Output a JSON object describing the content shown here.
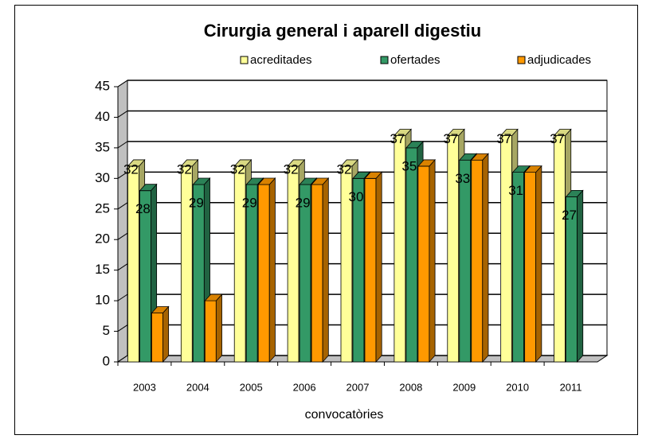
{
  "chart_data": {
    "type": "bar3d",
    "title": "Cirurgia general i aparell digestiu",
    "categories": [
      "2003",
      "2004",
      "2005",
      "2006",
      "2007",
      "2008",
      "2009",
      "2010",
      "2011"
    ],
    "series": [
      {
        "name": "acreditades",
        "color": "#ffff99",
        "values": [
          32,
          32,
          32,
          32,
          32,
          37,
          37,
          37,
          37
        ]
      },
      {
        "name": "ofertades",
        "color": "#339966",
        "values": [
          28,
          29,
          29,
          29,
          30,
          35,
          33,
          31,
          27
        ]
      },
      {
        "name": "adjudicades",
        "color": "#ff9900",
        "values": [
          8,
          10,
          29,
          29,
          30,
          32,
          33,
          31,
          null
        ]
      }
    ],
    "xlabel": "convocatòries",
    "ylim": [
      0,
      45
    ],
    "yticks": [
      0,
      5,
      10,
      15,
      20,
      25,
      30,
      35,
      40,
      45
    ],
    "grid": true,
    "legend": "top"
  }
}
